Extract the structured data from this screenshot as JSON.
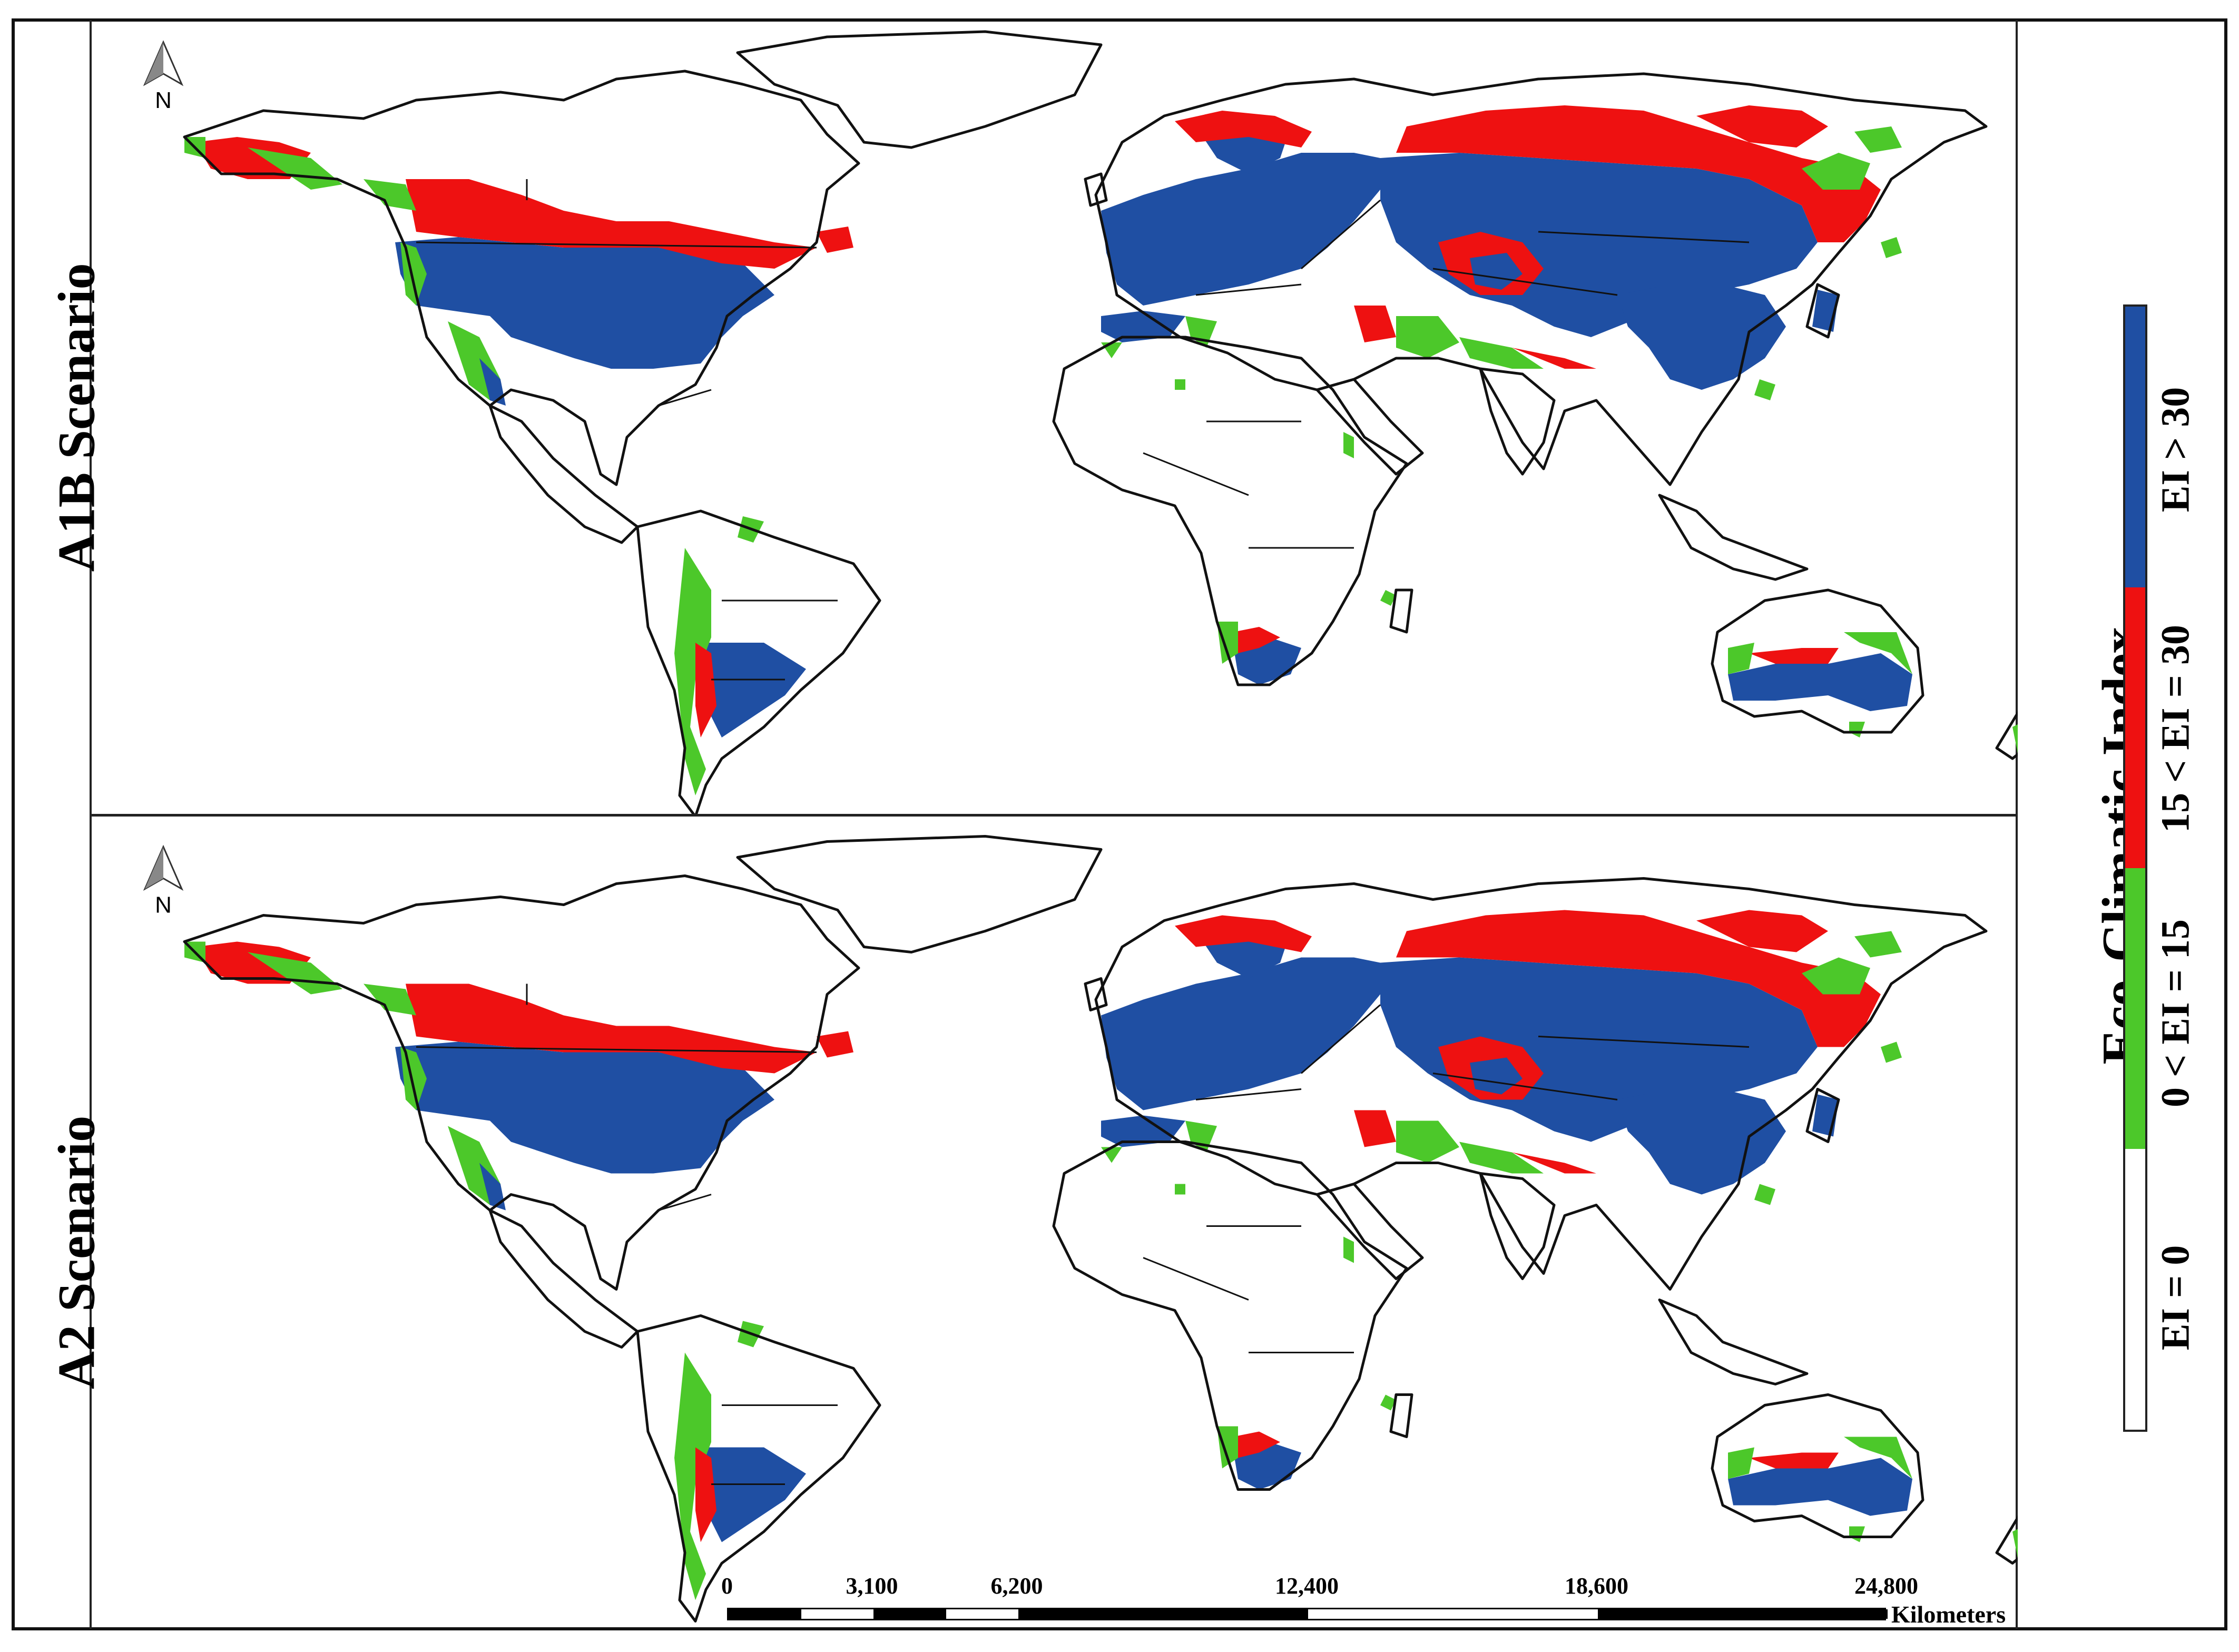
{
  "panels": [
    {
      "label": "A1B Scenario"
    },
    {
      "label": "A2 Scenario"
    }
  ],
  "north_arrow": {
    "letter": "N"
  },
  "legend": {
    "title": "Eco-Climatic Index",
    "classes": [
      {
        "label": "EI = 0",
        "color": "#ffffff"
      },
      {
        "label": "0 < EI = 15",
        "color": "#4cc82a"
      },
      {
        "label": "15 < EI = 30",
        "color": "#ee1111"
      },
      {
        "label": "EI > 30",
        "color": "#1f4fa3"
      }
    ]
  },
  "scale_bar": {
    "ticks": [
      "0",
      "3,100",
      "6,200",
      "12,400",
      "18,600",
      "24,800"
    ],
    "tick_values": [
      0,
      3100,
      6200,
      12400,
      18600,
      24800
    ],
    "units": "Kilometers"
  },
  "colors": {
    "ocean": "#ffffff",
    "land": "#ffffff",
    "outline": "#111111"
  }
}
